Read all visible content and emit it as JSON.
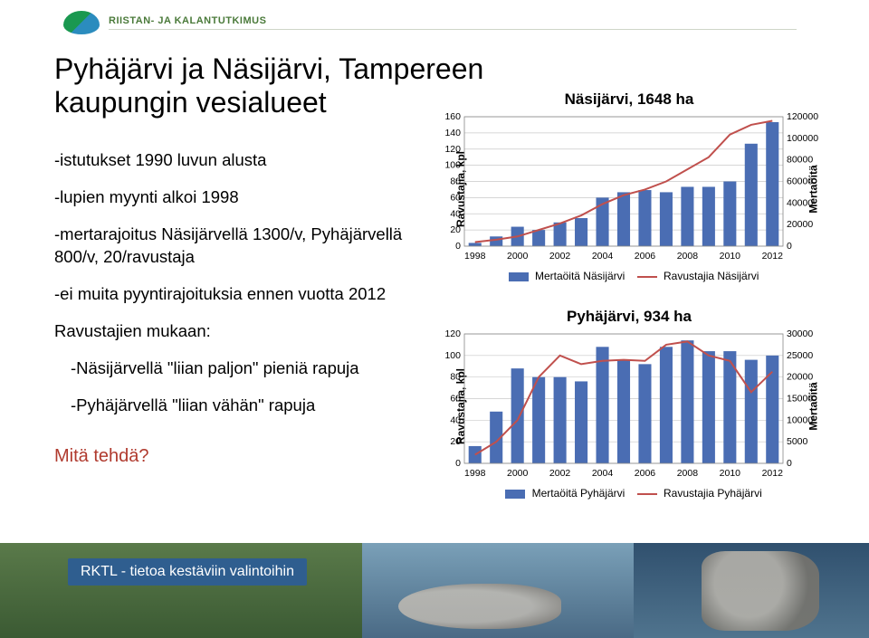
{
  "brand": {
    "text": "RIISTAN- JA KALANTUTKIMUS"
  },
  "title": "Pyhäjärvi ja Näsijärvi, Tampereen kaupungin vesialueet",
  "bullets": [
    "-istutukset 1990 luvun alusta",
    "-lupien myynti alkoi 1998",
    "-mertarajoitus Näsijärvellä 1300/v, Pyhäjärvellä 800/v, 20/ravustaja",
    "-ei muita pyyntirajoituksia ennen vuotta 2012",
    "Ravustajien mukaan:",
    "-Näsijärvellä \"liian paljon\" pieniä rapuja",
    "-Pyhäjärvellä \"liian vähän\" rapuja"
  ],
  "bullets_sub_index": [
    5,
    6
  ],
  "question": "Mitä tehdä?",
  "footer": "RKTL - tietoa kestäviin valintoihin",
  "chart1": {
    "title": "Näsijärvi, 1648 ha",
    "years": [
      1998,
      1999,
      2000,
      2001,
      2002,
      2003,
      2004,
      2005,
      2006,
      2007,
      2008,
      2009,
      2010,
      2011,
      2012
    ],
    "bars": [
      3000,
      9000,
      18000,
      15000,
      22000,
      26000,
      45000,
      50000,
      52000,
      50000,
      55000,
      55000,
      60000,
      95000,
      115000
    ],
    "line": [
      5,
      8,
      12,
      20,
      28,
      38,
      52,
      63,
      70,
      80,
      95,
      110,
      138,
      150,
      155
    ],
    "left_max": 160,
    "left_step": 20,
    "right_max": 120000,
    "right_step": 20000,
    "bar_color": "#4a6db3",
    "line_color": "#c0504d",
    "grid_color": "#c9c9c9",
    "left_label": "Ravustajia, kpl",
    "right_label": "Mertaöitä",
    "legend_bar": "Mertaöitä Näsijärvi",
    "legend_line": "Ravustajia Näsijärvi",
    "x_labels": [
      1998,
      2000,
      2002,
      2004,
      2006,
      2008,
      2010,
      2012
    ]
  },
  "chart2": {
    "title": "Pyhäjärvi, 934 ha",
    "years": [
      1998,
      1999,
      2000,
      2001,
      2002,
      2003,
      2004,
      2005,
      2006,
      2007,
      2008,
      2009,
      2010,
      2011,
      2012
    ],
    "bars": [
      4000,
      12000,
      22000,
      20000,
      20000,
      19000,
      27000,
      24000,
      23000,
      27000,
      28500,
      26000,
      26000,
      24000,
      25000
    ],
    "line": [
      8,
      20,
      40,
      80,
      100,
      92,
      95,
      96,
      95,
      110,
      113,
      100,
      95,
      66,
      85
    ],
    "left_max": 120,
    "left_step": 20,
    "right_max": 30000,
    "right_step": 5000,
    "bar_color": "#4a6db3",
    "line_color": "#c0504d",
    "grid_color": "#c9c9c9",
    "left_label": "Ravustajia, kpl",
    "right_label": "Mertaöitä",
    "legend_bar": "Mertaöitä Pyhäjärvi",
    "legend_line": "Ravustajia Pyhäjärvi",
    "x_labels": [
      1998,
      2000,
      2002,
      2004,
      2006,
      2008,
      2010,
      2012
    ]
  }
}
